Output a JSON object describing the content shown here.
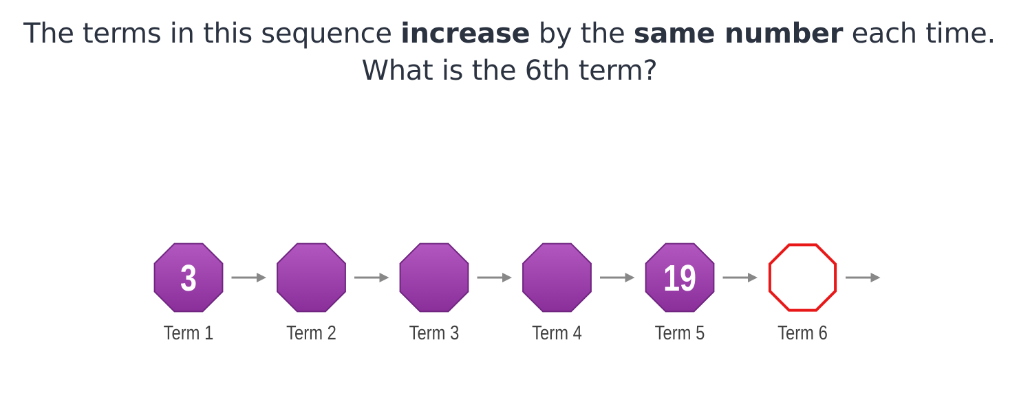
{
  "question": {
    "line1": {
      "part1": "The terms in this sequence ",
      "bold1": "increase",
      "part2": " by the ",
      "bold2": "same number",
      "part3": " each time."
    },
    "line2": "What is the 6th term?"
  },
  "sequence": {
    "terms": [
      {
        "label": "Term 1",
        "value": "3",
        "style": "filled"
      },
      {
        "label": "Term 2",
        "value": "",
        "style": "filled"
      },
      {
        "label": "Term 3",
        "value": "",
        "style": "filled"
      },
      {
        "label": "Term 4",
        "value": "",
        "style": "filled"
      },
      {
        "label": "Term 5",
        "value": "19",
        "style": "filled"
      },
      {
        "label": "Term 6",
        "value": "",
        "style": "outline"
      }
    ],
    "colors": {
      "fill_top": "#b357c0",
      "fill_bottom": "#8a2f9a",
      "stroke": "#6f2580",
      "outline": "#e81818",
      "arrow": "#888888"
    },
    "shape_icon": "octagon-icon",
    "arrow_icon": "right-arrow-icon"
  }
}
